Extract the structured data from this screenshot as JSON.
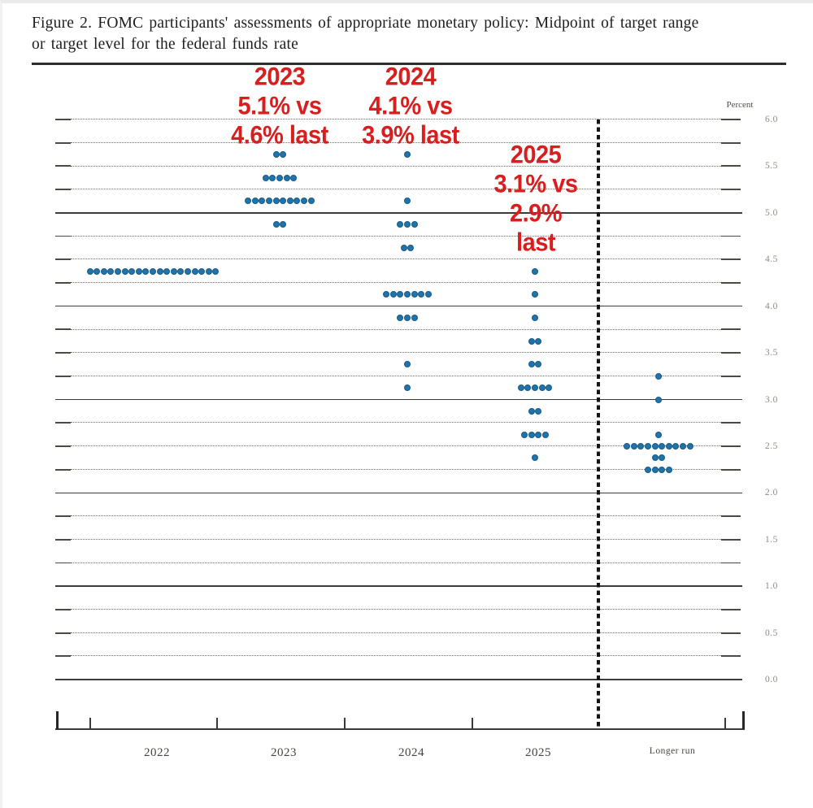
{
  "title": {
    "line1": "Figure 2.  FOMC participants' assessments of appropriate monetary policy:  Midpoint of target range",
    "line2": "or target level for the federal funds rate"
  },
  "annotations": [
    {
      "id": "2023",
      "lines": [
        "2023",
        "5.1% vs",
        "4.6% last"
      ]
    },
    {
      "id": "2024",
      "lines": [
        "2024",
        "4.1% vs",
        "3.9% last"
      ]
    },
    {
      "id": "2025",
      "lines": [
        "2025",
        "3.1% vs",
        "2.9%",
        "last"
      ]
    }
  ],
  "chart_data": {
    "type": "scatter",
    "subtype": "fomc-dot-plot",
    "title": "FOMC participants' assessments of appropriate monetary policy: Midpoint of target range or target level for the federal funds rate",
    "ylabel": "Percent",
    "y_axis": {
      "min": 0.0,
      "max": 6.0,
      "label_step": 0.5,
      "grid_step": 0.25,
      "tick_labels": [
        "6.0",
        "5.5",
        "5.0",
        "4.5",
        "4.0",
        "3.5",
        "3.0",
        "2.5",
        "2.0",
        "1.5",
        "1.0",
        "0.5",
        "0.0"
      ],
      "solid_lines_at": [
        0,
        1,
        2,
        3,
        4,
        5
      ],
      "grid": "dotted quarter-point lines with solid edge ticks; solid lines at whole percents"
    },
    "x_categories": [
      "2022",
      "2023",
      "2024",
      "2025",
      "Longer run"
    ],
    "separator_before": "Longer run",
    "columns": [
      {
        "label": "2022",
        "dots": [
          {
            "rate": 4.375,
            "count": 19
          }
        ]
      },
      {
        "label": "2023",
        "dots": [
          {
            "rate": 5.625,
            "count": 2
          },
          {
            "rate": 5.375,
            "count": 5
          },
          {
            "rate": 5.125,
            "count": 10
          },
          {
            "rate": 4.875,
            "count": 2
          }
        ]
      },
      {
        "label": "2024",
        "dots": [
          {
            "rate": 5.625,
            "count": 1
          },
          {
            "rate": 5.125,
            "count": 1
          },
          {
            "rate": 4.875,
            "count": 3
          },
          {
            "rate": 4.625,
            "count": 2
          },
          {
            "rate": 4.125,
            "count": 7
          },
          {
            "rate": 3.875,
            "count": 3
          },
          {
            "rate": 3.375,
            "count": 1
          },
          {
            "rate": 3.125,
            "count": 1
          }
        ]
      },
      {
        "label": "2025",
        "dots": [
          {
            "rate": 4.375,
            "count": 1
          },
          {
            "rate": 4.125,
            "count": 1
          },
          {
            "rate": 3.875,
            "count": 1
          },
          {
            "rate": 3.625,
            "count": 2
          },
          {
            "rate": 3.375,
            "count": 2
          },
          {
            "rate": 3.125,
            "count": 5
          },
          {
            "rate": 2.875,
            "count": 2
          },
          {
            "rate": 2.625,
            "count": 4
          },
          {
            "rate": 2.375,
            "count": 1
          }
        ]
      },
      {
        "label": "Longer run",
        "dots": [
          {
            "rate": 3.25,
            "count": 1
          },
          {
            "rate": 3.0,
            "count": 1
          },
          {
            "rate": 2.625,
            "count": 1
          },
          {
            "rate": 2.5,
            "count": 10
          },
          {
            "rate": 2.375,
            "count": 2
          },
          {
            "rate": 2.25,
            "count": 4
          }
        ]
      }
    ],
    "colors": {
      "dot": "#2173ab",
      "annotation_red": "#d81e1e",
      "grid_solid": "#3c3c3c",
      "grid_dotted": "#6e6e67"
    },
    "legend_position": "none"
  }
}
